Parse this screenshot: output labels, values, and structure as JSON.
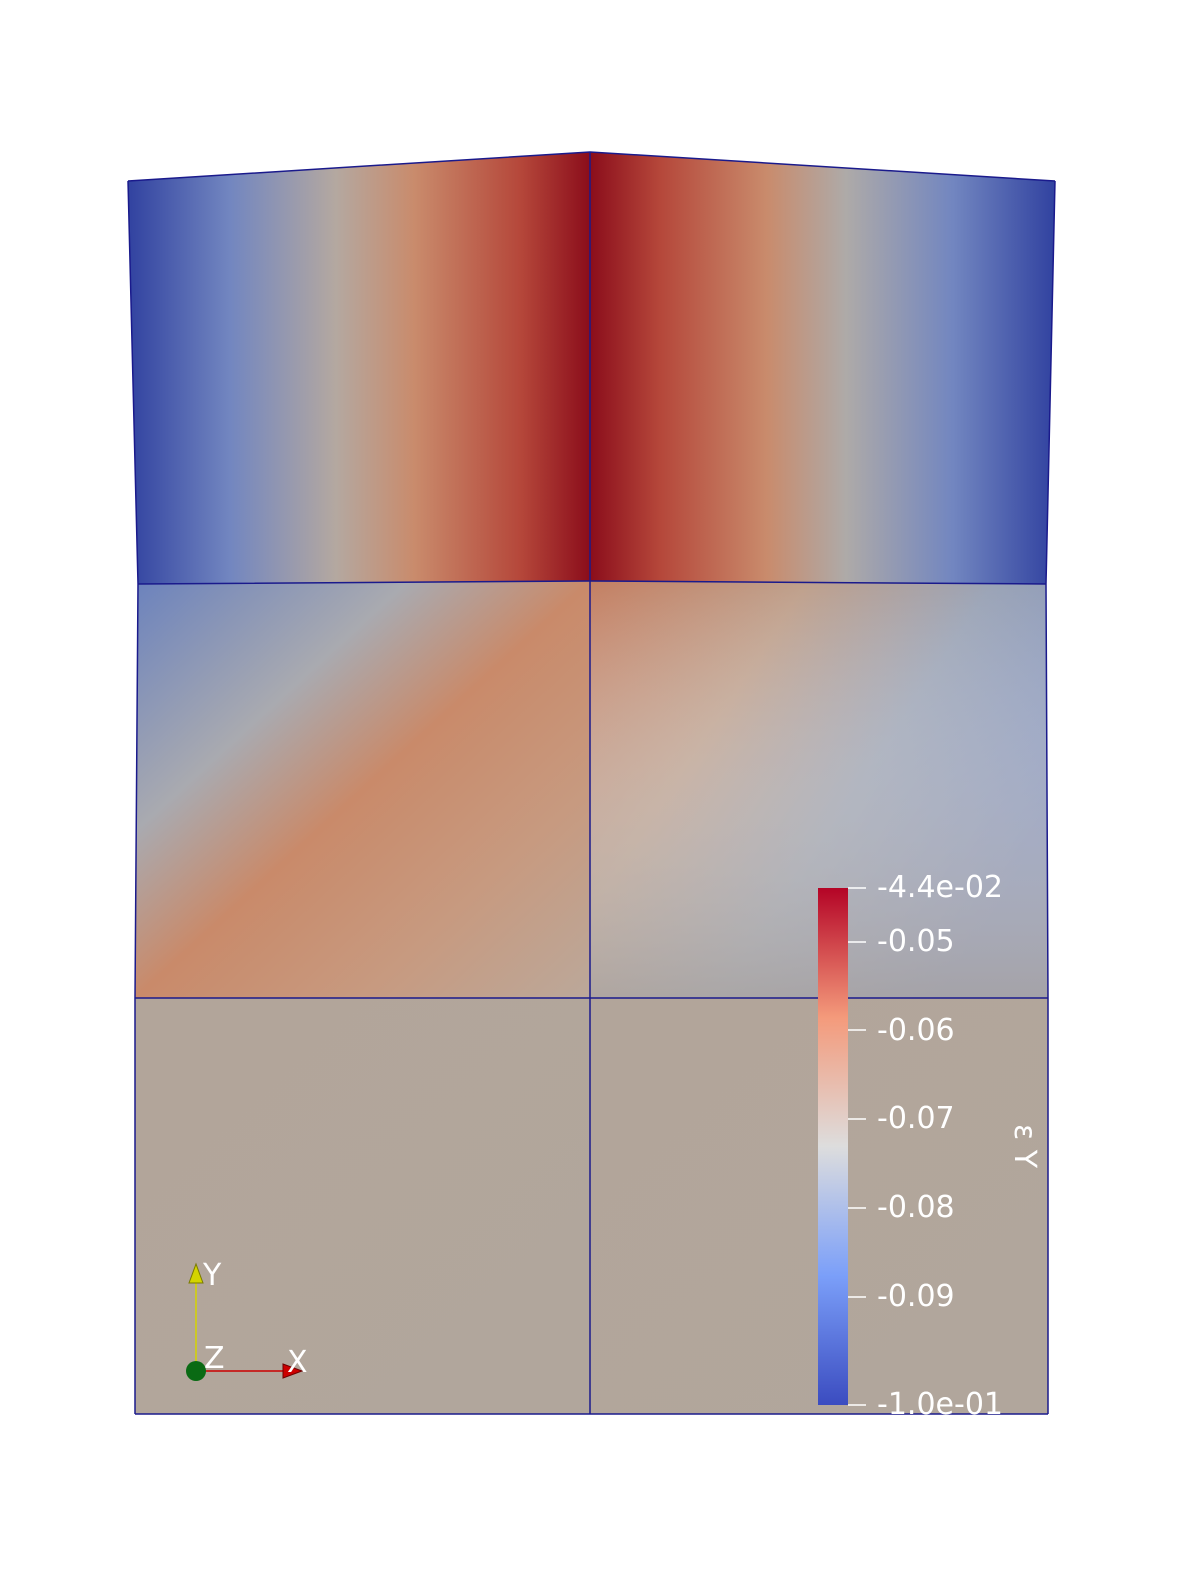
{
  "view": {
    "background_color": "#ffffff",
    "mesh_edge_color": "#1a1a8c"
  },
  "colormap": {
    "name": "Cool to Warm",
    "low_color": "#3b4cc0",
    "mid_color": "#dddddd",
    "high_color": "#b40426",
    "mesh_field_colors": {
      "max_red": "#8b0d1b",
      "red": "#b5473a",
      "orange": "#c97b5c",
      "salmon": "#c79a80",
      "gray": "#a9aab0",
      "light_blue": "#8a9cc2",
      "blue": "#6b82bd",
      "deep_blue": "#3142a0",
      "bottom_tan": "#b3a79b"
    }
  },
  "scalar_bar": {
    "title": "ε Y",
    "range": [
      -0.1,
      -0.044
    ],
    "labels": [
      "-4.4e-02",
      "-0.05",
      "-0.06",
      "-0.07",
      "-0.08",
      "-0.09",
      "-1.0e-01"
    ],
    "label_color": "#ffffff"
  },
  "axes_triad": {
    "y_label": "Y",
    "z_label": "Z",
    "x_label": "X",
    "y_color": "#d4d400",
    "x_color": "#cc0000",
    "z_color": "#0a6a14"
  }
}
